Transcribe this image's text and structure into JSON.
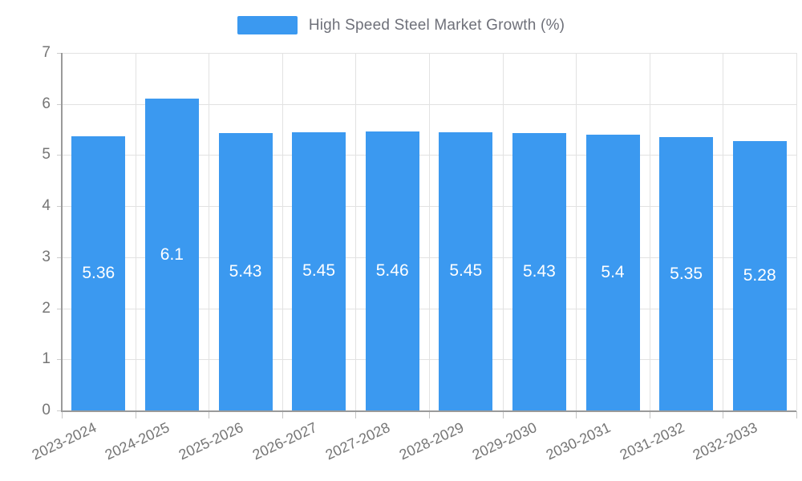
{
  "legend": {
    "label": "High Speed Steel Market Growth (%)"
  },
  "chart_data": {
    "type": "bar",
    "title": "High Speed Steel Market Growth (%)",
    "categories": [
      "2023-2024",
      "2024-2025",
      "2025-2026",
      "2026-2027",
      "2027-2028",
      "2028-2029",
      "2029-2030",
      "2030-2031",
      "2031-2032",
      "2032-2033"
    ],
    "values": [
      5.36,
      6.1,
      5.43,
      5.45,
      5.46,
      5.45,
      5.43,
      5.4,
      5.35,
      5.28
    ],
    "data_labels": [
      "5.36",
      "6.1",
      "5.43",
      "5.45",
      "5.46",
      "5.45",
      "5.43",
      "5.4",
      "5.35",
      "5.28"
    ],
    "xlabel": "",
    "ylabel": "",
    "ylim": [
      0,
      7
    ],
    "y_ticks": [
      0,
      1,
      2,
      3,
      4,
      5,
      6,
      7
    ],
    "grid": true,
    "legend_position": "top",
    "colors": {
      "bar": "#3b99f0",
      "bar_label_text": "#ffffff",
      "axis_text": "#757575",
      "legend_text": "#6e7079",
      "gridline": "#e2e2e2",
      "axis_line": "#9a9a9a"
    }
  }
}
